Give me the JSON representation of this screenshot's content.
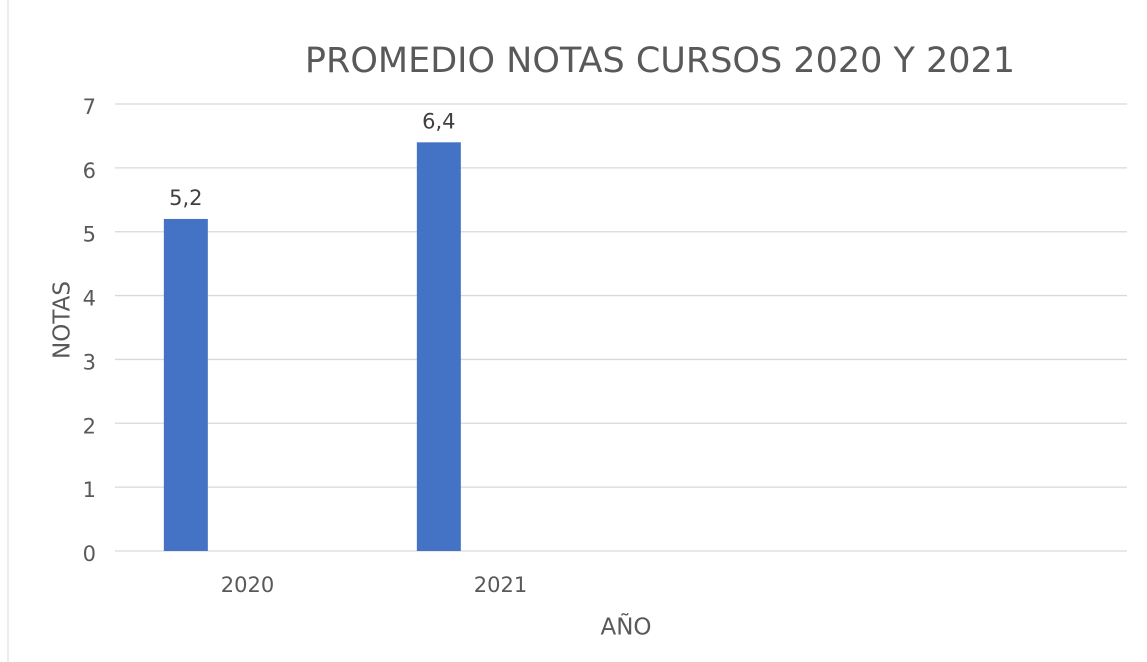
{
  "chart_data": {
    "type": "bar",
    "title": "PROMEDIO NOTAS CURSOS 2020 Y 2021",
    "x_label": "AÑO",
    "y_label": "NOTAS",
    "categories": [
      "2020",
      "2021",
      null,
      null
    ],
    "values": [
      5.2,
      6.4,
      null,
      null
    ],
    "value_labels": [
      "5,2",
      "6,4",
      null,
      null
    ],
    "color": "#4472c4",
    "ylim": [
      0,
      7
    ],
    "yticks": [
      0,
      1,
      2,
      3,
      4,
      5,
      6,
      7
    ],
    "grid": true
  }
}
